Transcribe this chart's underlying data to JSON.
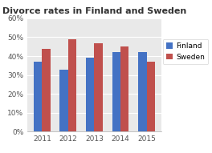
{
  "title": "Divorce rates in Finland and Sweden",
  "years": [
    "2011",
    "2012",
    "2013",
    "2014",
    "2015"
  ],
  "finland": [
    37,
    33,
    39,
    42,
    42
  ],
  "sweden": [
    44,
    49,
    47,
    45,
    37
  ],
  "finland_color": "#4472C4",
  "sweden_color": "#C0504D",
  "ylim": [
    0,
    60
  ],
  "yticks": [
    0,
    10,
    20,
    30,
    40,
    50,
    60
  ],
  "ytick_labels": [
    "0%",
    "10%",
    "20%",
    "30%",
    "40%",
    "50%",
    "60%"
  ],
  "legend_labels": [
    "Finland",
    "Sweden"
  ],
  "plot_bg_color": "#E9E9E9",
  "fig_bg_color": "#FFFFFF",
  "title_fontsize": 8,
  "axis_fontsize": 6.5,
  "legend_fontsize": 6.5,
  "bar_width": 0.32
}
